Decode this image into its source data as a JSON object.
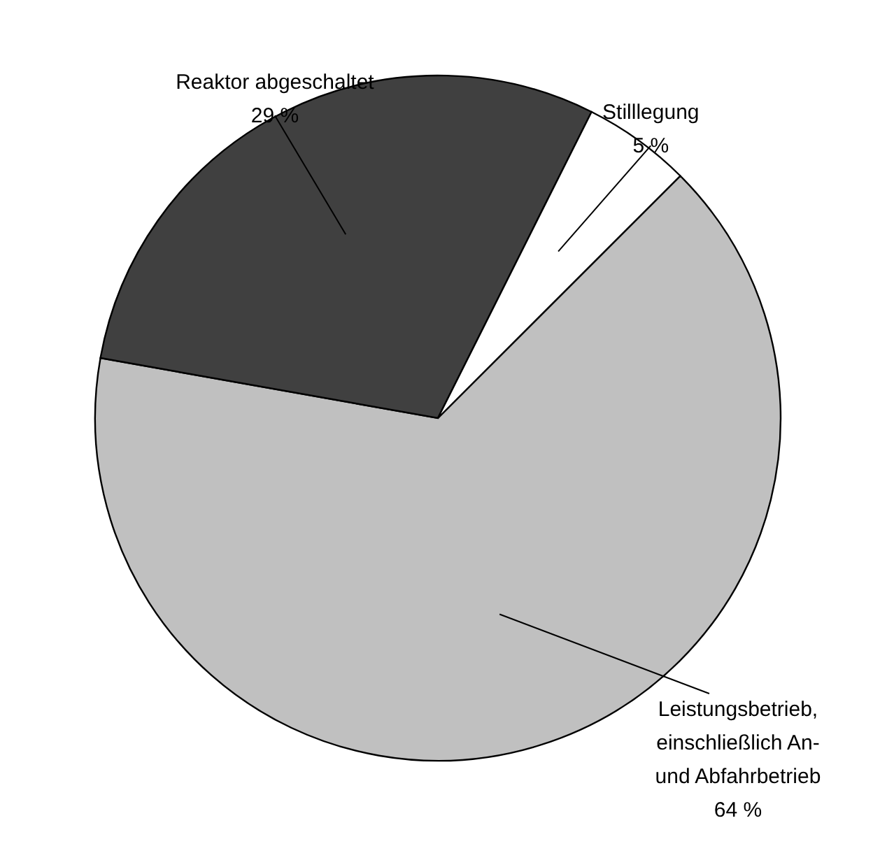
{
  "chart_data": {
    "type": "pie",
    "categories": [
      "Leistungsbetrieb, einschließlich An- und Abfahrbetrieb",
      "Reaktor abgeschaltet",
      "Stilllegung"
    ],
    "values": [
      64,
      29,
      5
    ],
    "value_labels": [
      "64 %",
      "29 %",
      "5 %"
    ],
    "colors": [
      "#c0c0c0",
      "#404040",
      "#ffffff"
    ]
  }
}
